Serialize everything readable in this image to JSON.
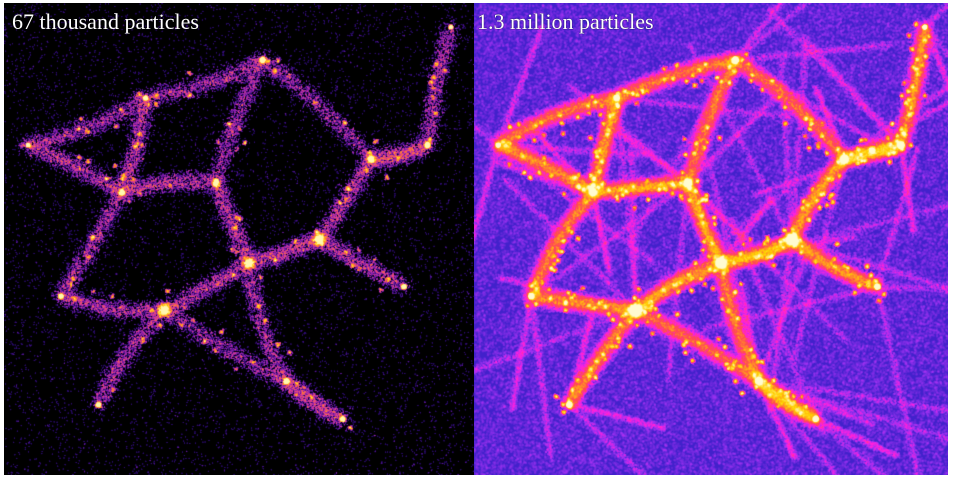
{
  "panels": [
    {
      "label": "67 thousand particles",
      "density": "low",
      "colormap": [
        "#000000",
        "#2a0a6e",
        "#8a1fb0",
        "#e0408a",
        "#ff7a2a",
        "#ffd21a",
        "#fff6b0"
      ]
    },
    {
      "label": "1.3 million particles",
      "density": "high",
      "colormap": [
        "#140a55",
        "#3a20c8",
        "#9a30f0",
        "#ff20e0",
        "#ff4a50",
        "#ffd000",
        "#fffbd0"
      ]
    }
  ]
}
